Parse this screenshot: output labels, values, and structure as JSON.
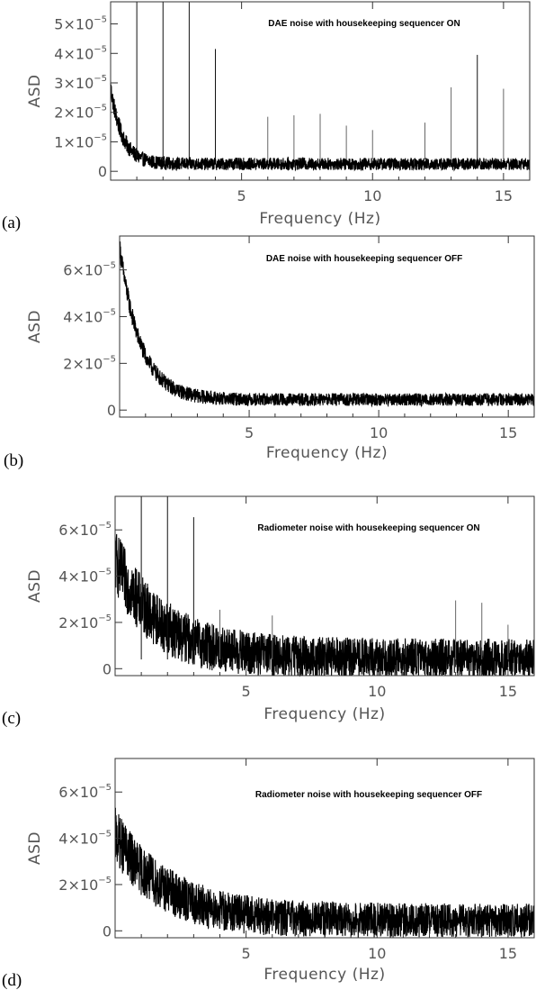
{
  "chart_data": [
    {
      "type": "line",
      "panel_label": "(a)",
      "title": "DAE noise with housekeeping sequencer ON",
      "xlabel": "Frequency (Hz)",
      "ylabel": "ASD",
      "xlim": [
        0,
        16
      ],
      "ylim": [
        -3e-06,
        5.75e-05
      ],
      "xticks": [
        5,
        10,
        15
      ],
      "yticks": [
        {
          "value": 0,
          "base": "0",
          "exp": ""
        },
        {
          "value": 1e-05,
          "base": "1×10",
          "exp": "−5"
        },
        {
          "value": 2e-05,
          "base": "2×10",
          "exp": "−5"
        },
        {
          "value": 3e-05,
          "base": "3×10",
          "exp": "−5"
        },
        {
          "value": 4e-05,
          "base": "4×10",
          "exp": "−5"
        },
        {
          "value": 5e-05,
          "base": "5×10",
          "exp": "−5"
        }
      ],
      "grid": false,
      "noise_model": {
        "amplitude": 2.6e-05,
        "decay_hz": 0.45,
        "floor": 2.5e-06,
        "spread": 3.5e-06
      },
      "lines": [
        {
          "x": 1,
          "y": 5.75e-05
        },
        {
          "x": 2,
          "y": 5.75e-05
        },
        {
          "x": 3,
          "y": 5.75e-05
        },
        {
          "x": 4,
          "y": 4.15e-05
        },
        {
          "x": 6,
          "y": 1.85e-05
        },
        {
          "x": 7,
          "y": 1.9e-05
        },
        {
          "x": 8,
          "y": 1.95e-05
        },
        {
          "x": 9,
          "y": 1.55e-05
        },
        {
          "x": 10,
          "y": 1.4e-05
        },
        {
          "x": 12,
          "y": 1.65e-05
        },
        {
          "x": 13,
          "y": 2.85e-05
        },
        {
          "x": 14,
          "y": 3.95e-05
        },
        {
          "x": 15,
          "y": 2.8e-05
        }
      ]
    },
    {
      "type": "line",
      "panel_label": "(b)",
      "title": "DAE noise with housekeeping sequencer OFF",
      "xlabel": "Frequency (Hz)",
      "ylabel": "ASD",
      "xlim": [
        0,
        16
      ],
      "ylim": [
        -3e-06,
        7.45e-05
      ],
      "xticks": [
        5,
        10,
        15
      ],
      "yticks": [
        {
          "value": 0,
          "base": "0",
          "exp": ""
        },
        {
          "value": 2e-05,
          "base": "2×10",
          "exp": "−5"
        },
        {
          "value": 4e-05,
          "base": "4×10",
          "exp": "−5"
        },
        {
          "value": 6e-05,
          "base": "6×10",
          "exp": "−5"
        }
      ],
      "grid": false,
      "noise_model": {
        "amplitude": 6.55e-05,
        "decay_hz": 0.8,
        "floor": 4.5e-06,
        "spread": 4.5e-06
      },
      "lines": []
    },
    {
      "type": "line",
      "panel_label": "(c)",
      "title": "Radiometer noise with housekeeping sequencer ON",
      "xlabel": "Frequency (Hz)",
      "ylabel": "ASD",
      "xlim": [
        0,
        16
      ],
      "ylim": [
        -3e-06,
        7.45e-05
      ],
      "xticks": [
        5,
        10,
        15
      ],
      "yticks": [
        {
          "value": 0,
          "base": "0",
          "exp": ""
        },
        {
          "value": 2e-05,
          "base": "2×10",
          "exp": "−5"
        },
        {
          "value": 4e-05,
          "base": "4×10",
          "exp": "−5"
        },
        {
          "value": 6e-05,
          "base": "6×10",
          "exp": "−5"
        }
      ],
      "grid": false,
      "noise_model": {
        "amplitude": 4.25e-05,
        "decay_hz": 1.7,
        "floor": 4.5e-06,
        "spread": 1.4e-05
      },
      "lines": [
        {
          "x": 1,
          "y": 7.45e-05
        },
        {
          "x": 2,
          "y": 7.45e-05
        },
        {
          "x": 3,
          "y": 6.55e-05
        },
        {
          "x": 4,
          "y": 2.55e-05
        },
        {
          "x": 6,
          "y": 2.3e-05
        },
        {
          "x": 13,
          "y": 2.95e-05
        },
        {
          "x": 14,
          "y": 2.85e-05
        },
        {
          "x": 15,
          "y": 1.9e-05
        }
      ]
    },
    {
      "type": "line",
      "panel_label": "(d)",
      "title": "Radiometer noise with housekeeping sequencer OFF",
      "xlabel": "Frequency (Hz)",
      "ylabel": "ASD",
      "xlim": [
        0,
        16
      ],
      "ylim": [
        -3e-06,
        7.45e-05
      ],
      "xticks": [
        5,
        10,
        15
      ],
      "yticks": [
        {
          "value": 0,
          "base": "0",
          "exp": ""
        },
        {
          "value": 2e-05,
          "base": "2×10",
          "exp": "−5"
        },
        {
          "value": 4e-05,
          "base": "4×10",
          "exp": "−5"
        },
        {
          "value": 6e-05,
          "base": "6×10",
          "exp": "−5"
        }
      ],
      "grid": false,
      "noise_model": {
        "amplitude": 3.7e-05,
        "decay_hz": 1.9,
        "floor": 4.5e-06,
        "spread": 1.2e-05
      },
      "lines": []
    }
  ]
}
